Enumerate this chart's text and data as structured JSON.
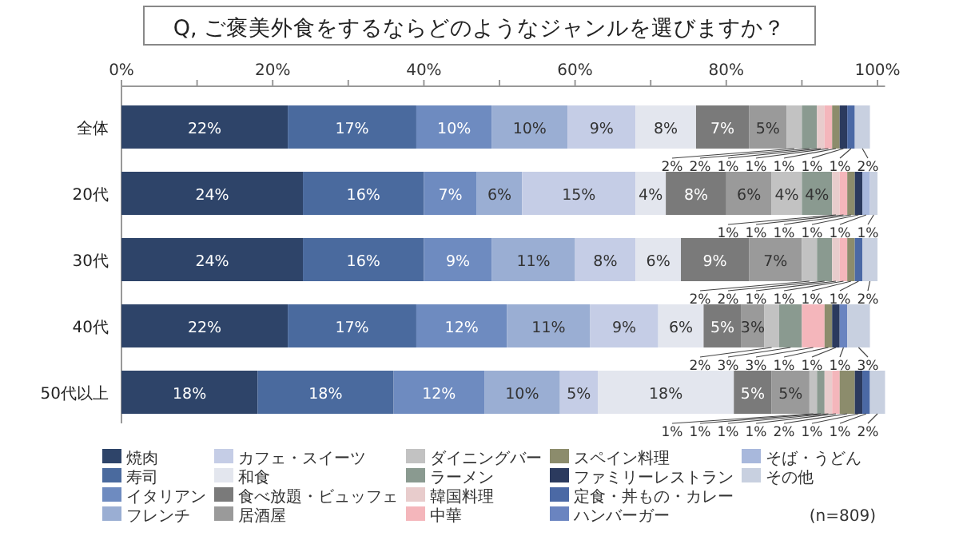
{
  "chart_data": {
    "type": "bar",
    "orientation": "horizontal",
    "stacked": true,
    "title": "Q, ご褒美外食をするならどのようなジャンルを選びますか？",
    "categories": [
      "全体",
      "20代",
      "30代",
      "40代",
      "50代以上"
    ],
    "xlim": [
      0,
      101
    ],
    "xticks": [
      {
        "value": 0,
        "label": "0%"
      },
      {
        "value": 10,
        "label": null
      },
      {
        "value": 20,
        "label": "20%"
      },
      {
        "value": 30,
        "label": null
      },
      {
        "value": 40,
        "label": "40%"
      },
      {
        "value": 50,
        "label": null
      },
      {
        "value": 60,
        "label": "60%"
      },
      {
        "value": 70,
        "label": null
      },
      {
        "value": 80,
        "label": "80%"
      },
      {
        "value": 90,
        "label": null
      },
      {
        "value": 100,
        "label": "100%"
      }
    ],
    "grid": false,
    "legend": "bottom",
    "annotations": [
      "(n=809)"
    ],
    "series": [
      {
        "name": "焼肉",
        "color": "#2e4469",
        "values": [
          22,
          24,
          24,
          22,
          18
        ],
        "value_labels": [
          "22%",
          "24%",
          "24%",
          "22%",
          "18%"
        ]
      },
      {
        "name": "寿司",
        "color": "#4a6a9e",
        "values": [
          17,
          16,
          16,
          17,
          18
        ],
        "value_labels": [
          "17%",
          "16%",
          "16%",
          "17%",
          "18%"
        ]
      },
      {
        "name": "イタリアン",
        "color": "#6e8bc0",
        "values": [
          10,
          7,
          9,
          12,
          12
        ],
        "value_labels": [
          "10%",
          "7%",
          "9%",
          "12%",
          "12%"
        ]
      },
      {
        "name": "フレンチ",
        "color": "#9aaed3",
        "values": [
          10,
          6,
          11,
          11,
          10
        ],
        "value_labels": [
          "10%",
          "6%",
          "11%",
          "11%",
          "10%"
        ]
      },
      {
        "name": "カフェ・スイーツ",
        "color": "#c5cde6",
        "values": [
          9,
          15,
          8,
          9,
          5
        ],
        "value_labels": [
          "9%",
          "15%",
          "8%",
          "9%",
          "5%"
        ]
      },
      {
        "name": "和食",
        "color": "#e3e6ee",
        "values": [
          8,
          4,
          6,
          6,
          18
        ],
        "value_labels": [
          "8%",
          "4%",
          "6%",
          "6%",
          "18%"
        ]
      },
      {
        "name": "食べ放題・ビュッフェ",
        "color": "#7a7a7a",
        "values": [
          7,
          8,
          9,
          5,
          5
        ],
        "value_labels": [
          "7%",
          "8%",
          "9%",
          "5%",
          "5%"
        ]
      },
      {
        "name": "居酒屋",
        "color": "#9a9a9a",
        "values": [
          5,
          6,
          7,
          3,
          5
        ],
        "value_labels": [
          "5%",
          "6%",
          "7%",
          "3%",
          "5%"
        ]
      },
      {
        "name": "ダイニングバー",
        "color": "#c2c2c2",
        "values": [
          2,
          4,
          2,
          2,
          1
        ],
        "value_labels": [
          "2%",
          "4%",
          "2%",
          "2%",
          "1%"
        ]
      },
      {
        "name": "ラーメン",
        "color": "#8a9a90",
        "values": [
          2,
          4,
          2,
          3,
          1
        ],
        "value_labels": [
          "2%",
          "4%",
          "2%",
          "3%",
          "1%"
        ]
      },
      {
        "name": "韓国料理",
        "color": "#e8cccc",
        "values": [
          1,
          1,
          1,
          null,
          1
        ],
        "value_labels": [
          "1%",
          "1%",
          "1%",
          null,
          "1%"
        ]
      },
      {
        "name": "中華",
        "color": "#f4b6bb",
        "values": [
          1,
          1,
          1,
          3,
          1
        ],
        "value_labels": [
          "1%",
          "1%",
          "1%",
          "3%",
          "1%"
        ]
      },
      {
        "name": "スペイン料理",
        "color": "#8c8c6c",
        "values": [
          1,
          1,
          1,
          1,
          2
        ],
        "value_labels": [
          "1%",
          "1%",
          "1%",
          "1%",
          "2%"
        ]
      },
      {
        "name": "ファミリーレストラン",
        "color": "#2b3a5e",
        "values": [
          1,
          1,
          null,
          1,
          1
        ],
        "value_labels": [
          "1%",
          "1%",
          null,
          "1%",
          "1%"
        ]
      },
      {
        "name": "定食・丼もの・カレー",
        "color": "#4b69a5",
        "values": [
          1,
          null,
          1,
          null,
          1
        ],
        "value_labels": [
          "1%",
          null,
          "1%",
          null,
          "1%"
        ]
      },
      {
        "name": "ハンバーガー",
        "color": "#6a84c0",
        "values": [
          null,
          null,
          null,
          1,
          null
        ],
        "value_labels": [
          null,
          null,
          null,
          "1%",
          null
        ]
      },
      {
        "name": "そば・うどん",
        "color": "#a8b8dc",
        "values": [
          null,
          1,
          null,
          null,
          null
        ],
        "value_labels": [
          null,
          "1%",
          null,
          null,
          null
        ]
      },
      {
        "name": "その他",
        "color": "#c8d0e0",
        "values": [
          2,
          1,
          2,
          3,
          2
        ],
        "value_labels": [
          "2%",
          "1%",
          "2%",
          "3%",
          "2%"
        ]
      }
    ]
  }
}
